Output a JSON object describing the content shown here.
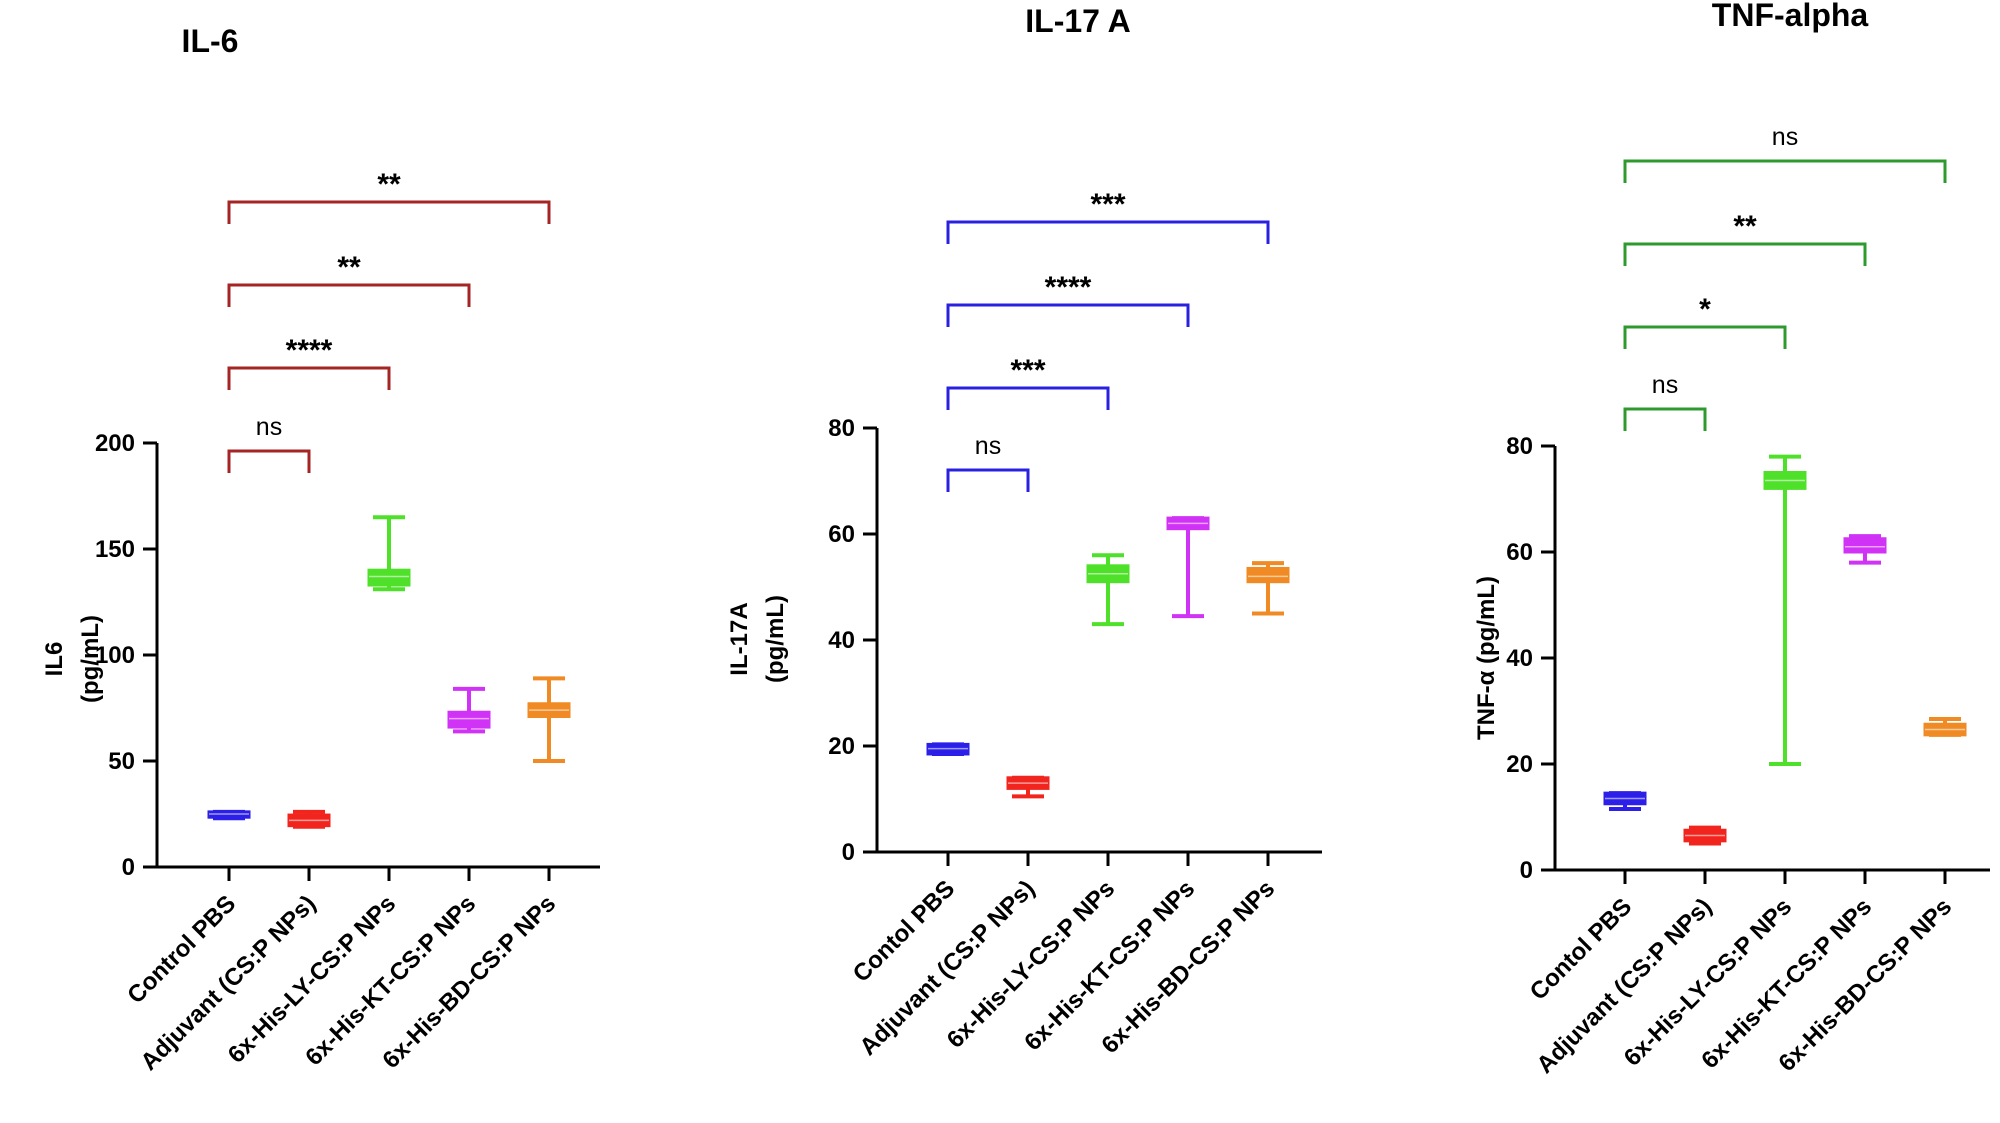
{
  "chart_data": [
    {
      "type": "box",
      "title": "IL-6",
      "ylabel": [
        "IL6",
        "(pg/mL)"
      ],
      "ylim": [
        0,
        200
      ],
      "yticks": [
        0,
        50,
        100,
        150,
        200
      ],
      "categories": [
        "Control PBS",
        "Adjuvant (CS:P NPs)",
        "6x-His-LY-CS:P NPs",
        "6x-His-KT-CS:P NPs",
        "6x-His-BD-CS:P NPs"
      ],
      "colors": [
        "#2b1fe8",
        "#f2251e",
        "#4fe02a",
        "#d033f5",
        "#f08a24"
      ],
      "series": [
        {
          "min": 23,
          "q1": 23.5,
          "median": 25,
          "q3": 26,
          "max": 26
        },
        {
          "min": 19,
          "q1": 19.5,
          "median": 22,
          "q3": 24.5,
          "max": 26
        },
        {
          "min": 131,
          "q1": 133,
          "median": 137,
          "q3": 140,
          "max": 165
        },
        {
          "min": 64,
          "q1": 66,
          "median": 70,
          "q3": 73,
          "max": 84
        },
        {
          "min": 50,
          "q1": 71,
          "median": 74,
          "q3": 77,
          "max": 89
        }
      ],
      "bracket_color": "#a52424",
      "comparisons": [
        {
          "from": 0,
          "to": 1,
          "label": "ns"
        },
        {
          "from": 0,
          "to": 2,
          "label": "****"
        },
        {
          "from": 0,
          "to": 3,
          "label": "**"
        },
        {
          "from": 0,
          "to": 4,
          "label": "**"
        }
      ]
    },
    {
      "type": "box",
      "title": "IL-17 A",
      "ylabel": [
        "IL-17A",
        "(pg/mL)"
      ],
      "ylim": [
        0,
        80
      ],
      "yticks": [
        0,
        20,
        40,
        60,
        80
      ],
      "categories": [
        "Contol PBS",
        "Adjuvant (CS:P NPs)",
        "6x-His-LY-CS:P NPs",
        "6x-His-KT-CS:P NPs",
        "6x-His-BD-CS:P NPs"
      ],
      "colors": [
        "#2b1fe8",
        "#f2251e",
        "#4fe02a",
        "#d033f5",
        "#f08a24"
      ],
      "series": [
        {
          "min": 18.5,
          "q1": 18.5,
          "median": 19.5,
          "q3": 20.3,
          "max": 20.3
        },
        {
          "min": 10.5,
          "q1": 12,
          "median": 13,
          "q3": 14,
          "max": 14
        },
        {
          "min": 43,
          "q1": 51,
          "median": 52.5,
          "q3": 54,
          "max": 56
        },
        {
          "min": 44.5,
          "q1": 61,
          "median": 62,
          "q3": 63,
          "max": 63
        },
        {
          "min": 45,
          "q1": 51,
          "median": 52,
          "q3": 53.5,
          "max": 54.5
        }
      ],
      "bracket_color": "#2a21e0",
      "comparisons": [
        {
          "from": 0,
          "to": 1,
          "label": "ns"
        },
        {
          "from": 0,
          "to": 2,
          "label": "***"
        },
        {
          "from": 0,
          "to": 3,
          "label": "****"
        },
        {
          "from": 0,
          "to": 4,
          "label": "***"
        }
      ]
    },
    {
      "type": "box",
      "title": "TNF-alpha",
      "ylabel": [
        "TNF-α (pg/mL)"
      ],
      "ylim": [
        0,
        80
      ],
      "yticks": [
        0,
        20,
        40,
        60,
        80
      ],
      "categories": [
        "Contol PBS",
        "Adjuvant (CS:P NPs)",
        "6x-His-LY-CS:P NPs",
        "6x-His-KT-CS:P NPs",
        "6x-His-BD-CS:P NPs"
      ],
      "colors": [
        "#2b1fe8",
        "#f2251e",
        "#4fe02a",
        "#d033f5",
        "#f08a24"
      ],
      "series": [
        {
          "min": 11.5,
          "q1": 12.5,
          "median": 13.5,
          "q3": 14.5,
          "max": 14.5
        },
        {
          "min": 5,
          "q1": 5.5,
          "median": 6.5,
          "q3": 7.5,
          "max": 8
        },
        {
          "min": 20,
          "q1": 72,
          "median": 73.5,
          "q3": 75,
          "max": 78
        },
        {
          "min": 58,
          "q1": 60,
          "median": 61,
          "q3": 62.5,
          "max": 63
        },
        {
          "min": 25.5,
          "q1": 25.5,
          "median": 26.5,
          "q3": 27.5,
          "max": 28.5
        }
      ],
      "bracket_color": "#2e9a2e",
      "comparisons": [
        {
          "from": 0,
          "to": 1,
          "label": "ns"
        },
        {
          "from": 0,
          "to": 2,
          "label": "*"
        },
        {
          "from": 0,
          "to": 3,
          "label": "**"
        },
        {
          "from": 0,
          "to": 4,
          "label": "ns"
        }
      ]
    }
  ]
}
